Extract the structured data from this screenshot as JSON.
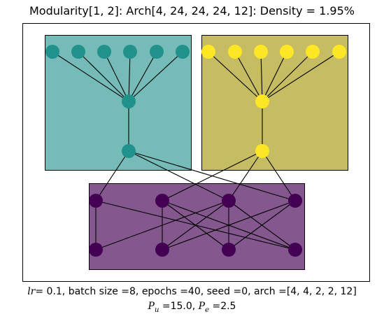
{
  "title": "Modularity[1, 2]: Arch[4, 24, 24, 24, 12]: Density = 1.95%",
  "caption": {
    "line1": {
      "lr_symbol": "lr",
      "lr_value": "=  0.1, batch size =8, epochs =40, seed =0, arch =[4, 4, 2, 2, 12]"
    },
    "line2": {
      "pu_symbol": "P",
      "pu_sub": "u",
      "pu_value": " =15.0, ",
      "pe_symbol": "P",
      "pe_sub": "e",
      "pe_value": " =2.5"
    }
  },
  "colors": {
    "teal_module": "#21918c",
    "yellow_module": "#fde725",
    "purple_module": "#440154",
    "edge": "#000000"
  }
}
